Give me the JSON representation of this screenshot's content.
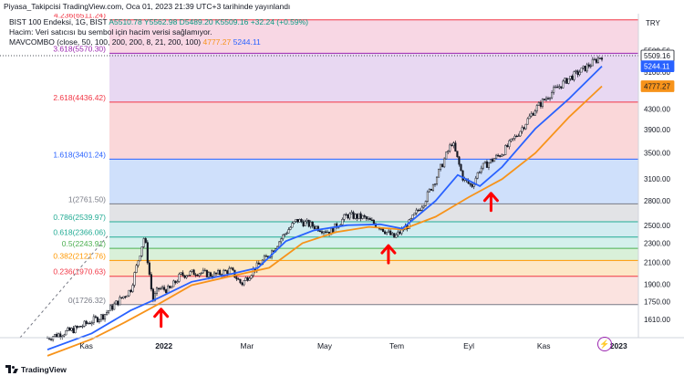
{
  "header": {
    "title": "Piyasa_Takipcisi TradingView.com, Oca 01, 2023 21:39 UTC+3 tarihinde yayınlandı"
  },
  "legend": {
    "symbol_line": "BIST 100 Endeksi, 1G, BIST",
    "ohlc": "A5510.78 Y5562.98 D5489.20 K5509.16",
    "change": "+32.24 (+0.59%)",
    "volume_line": "Hacim: Veri satıcısı bu sembol için hacim verisi sağlamıyor.",
    "indicator": "MAVCOMBO (close, 50, 100, 200, 200, 8, 21, 200, 100)",
    "indicator_v1": "4777.27",
    "indicator_v2": "5244.11"
  },
  "currency": "TRY",
  "colors": {
    "up": "#089981",
    "ema_orange": "#f7931a",
    "ema_blue": "#2962ff",
    "arrow": "#ff0000",
    "fib_red": "#f23645",
    "fib_blue": "#2962ff",
    "fib_gray": "#787b86",
    "fib_teal": "#22ab94",
    "fib_green": "#4caf50",
    "fib_orange": "#ff9800",
    "fib_purple": "#9c27b0"
  },
  "price_axis": {
    "ticks": [
      "5100.00",
      "4300.00",
      "3900.00",
      "3500.00",
      "3100.00",
      "2800.00",
      "2500.00",
      "2300.00",
      "2100.00",
      "1900.00",
      "1750.00",
      "1610.00"
    ],
    "badges": [
      {
        "label": "5509.16",
        "price": 5509.16,
        "bg": "#ffffff",
        "fg": "#131722",
        "border": "#131722"
      },
      {
        "label": "5244.11",
        "price": 5244.11,
        "bg": "#2962ff",
        "fg": "#ffffff",
        "border": "#2962ff"
      },
      {
        "label": "4777.27",
        "price": 4777.27,
        "bg": "#f7931a",
        "fg": "#131722",
        "border": "#f7931a"
      }
    ],
    "partial_top_label": "5509.56"
  },
  "time_axis": {
    "labels": [
      {
        "label": "Kas",
        "t": 0.07,
        "bold": false
      },
      {
        "label": "2022",
        "t": 0.21,
        "bold": true
      },
      {
        "label": "Mar",
        "t": 0.36,
        "bold": false
      },
      {
        "label": "May",
        "t": 0.5,
        "bold": false
      },
      {
        "label": "Tem",
        "t": 0.63,
        "bold": false
      },
      {
        "label": "Eyl",
        "t": 0.76,
        "bold": false
      },
      {
        "label": "Kas",
        "t": 0.895,
        "bold": false
      },
      {
        "label": "2023",
        "t": 1.03,
        "bold": true
      }
    ]
  },
  "fib_levels": [
    {
      "label": "4.236(6511.24)",
      "price": 6511.24,
      "color": "#f23645"
    },
    {
      "label": "3.618(5570.30)",
      "price": 5570.3,
      "color": "#9c27b0"
    },
    {
      "label": "2.618(4436.42)",
      "price": 4436.42,
      "color": "#f23645"
    },
    {
      "label": "1.618(3401.24)",
      "price": 3401.24,
      "color": "#2962ff"
    },
    {
      "label": "1(2761.50)",
      "price": 2761.5,
      "color": "#787b86"
    },
    {
      "label": "0.786(2539.97)",
      "price": 2539.97,
      "color": "#22ab94"
    },
    {
      "label": "0.618(2366.06)",
      "price": 2366.06,
      "color": "#22ab94"
    },
    {
      "label": "0.5(2243.91)",
      "price": 2243.91,
      "color": "#4caf50"
    },
    {
      "label": "0.382(2121.76)",
      "price": 2121.76,
      "color": "#ff9800"
    },
    {
      "label": "0.236(1970.63)",
      "price": 1970.63,
      "color": "#f23645"
    },
    {
      "label": "0(1726.32)",
      "price": 1726.32,
      "color": "#787b86"
    }
  ],
  "arrows": [
    {
      "t": 0.205,
      "price": 1655
    },
    {
      "t": 0.615,
      "price": 2225
    },
    {
      "t": 0.8,
      "price": 2840
    }
  ],
  "footer": {
    "brand": "TradingView"
  },
  "chart_data": {
    "type": "candlestick",
    "symbol": "BIST 100 Endeksi",
    "interval": "1G",
    "ylim": [
      1480,
      6700
    ],
    "y_scale": "log",
    "price_path": [
      [
        0.0,
        1480
      ],
      [
        0.05,
        1540
      ],
      [
        0.1,
        1640
      ],
      [
        0.15,
        1850
      ],
      [
        0.175,
        2380
      ],
      [
        0.19,
        1760
      ],
      [
        0.2,
        1860
      ],
      [
        0.22,
        1850
      ],
      [
        0.24,
        1980
      ],
      [
        0.27,
        2010
      ],
      [
        0.3,
        1980
      ],
      [
        0.33,
        2030
      ],
      [
        0.35,
        1900
      ],
      [
        0.37,
        2020
      ],
      [
        0.4,
        2180
      ],
      [
        0.43,
        2420
      ],
      [
        0.45,
        2560
      ],
      [
        0.48,
        2490
      ],
      [
        0.51,
        2420
      ],
      [
        0.54,
        2620
      ],
      [
        0.57,
        2590
      ],
      [
        0.6,
        2480
      ],
      [
        0.625,
        2360
      ],
      [
        0.65,
        2500
      ],
      [
        0.68,
        2800
      ],
      [
        0.7,
        3100
      ],
      [
        0.73,
        3690
      ],
      [
        0.75,
        3100
      ],
      [
        0.765,
        3000
      ],
      [
        0.78,
        3250
      ],
      [
        0.82,
        3500
      ],
      [
        0.85,
        3850
      ],
      [
        0.88,
        4300
      ],
      [
        0.91,
        4650
      ],
      [
        0.94,
        4950
      ],
      [
        0.97,
        5200
      ],
      [
        1.0,
        5509.16
      ]
    ],
    "ema_short": {
      "name": "",
      "color": "#2962ff",
      "values": [
        [
          0.0,
          1400
        ],
        [
          0.08,
          1510
        ],
        [
          0.15,
          1680
        ],
        [
          0.2,
          1780
        ],
        [
          0.26,
          1920
        ],
        [
          0.33,
          1990
        ],
        [
          0.38,
          2050
        ],
        [
          0.43,
          2320
        ],
        [
          0.48,
          2440
        ],
        [
          0.54,
          2500
        ],
        [
          0.6,
          2510
        ],
        [
          0.64,
          2460
        ],
        [
          0.7,
          2800
        ],
        [
          0.74,
          3160
        ],
        [
          0.78,
          3000
        ],
        [
          0.82,
          3280
        ],
        [
          0.88,
          3920
        ],
        [
          0.94,
          4500
        ],
        [
          1.0,
          5244.11
        ]
      ]
    },
    "ema_long": {
      "name": "",
      "color": "#f7931a",
      "values": [
        [
          0.0,
          1360
        ],
        [
          0.08,
          1470
        ],
        [
          0.14,
          1590
        ],
        [
          0.2,
          1730
        ],
        [
          0.26,
          1890
        ],
        [
          0.33,
          1970
        ],
        [
          0.4,
          2050
        ],
        [
          0.46,
          2300
        ],
        [
          0.52,
          2420
        ],
        [
          0.58,
          2480
        ],
        [
          0.64,
          2450
        ],
        [
          0.7,
          2600
        ],
        [
          0.76,
          2850
        ],
        [
          0.82,
          3100
        ],
        [
          0.88,
          3500
        ],
        [
          0.94,
          4130
        ],
        [
          1.0,
          4777.27
        ]
      ]
    }
  }
}
